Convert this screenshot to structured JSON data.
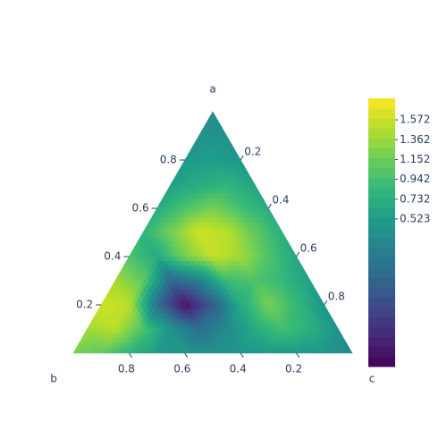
{
  "chart_data": {
    "type": "ternary-contour",
    "axis_titles": {
      "a": "a",
      "b": "b",
      "c": "c"
    },
    "a": [
      1,
      0.9,
      0.9,
      0.8,
      0.8,
      0.8,
      0.7,
      0.7,
      0.7,
      0.7,
      0.6,
      0.6,
      0.6,
      0.6,
      0.6,
      0.5,
      0.5,
      0.5,
      0.5,
      0.5,
      0.5,
      0.4,
      0.4,
      0.4,
      0.4,
      0.4,
      0.4,
      0.4,
      0.3,
      0.3,
      0.3,
      0.3,
      0.3,
      0.3,
      0.3,
      0.3,
      0.2,
      0.2,
      0.2,
      0.2,
      0.2,
      0.2,
      0.2,
      0.2,
      0.2,
      0.1,
      0.1,
      0.1,
      0.1,
      0.1,
      0.1,
      0.1,
      0.1,
      0.1,
      0.1,
      0,
      0,
      0,
      0,
      0,
      0,
      0,
      0,
      0,
      0,
      0
    ],
    "b": [
      0,
      0,
      0.1,
      0,
      0.1,
      0.2,
      0,
      0.1,
      0.2,
      0.3,
      0,
      0.1,
      0.2,
      0.3,
      0.4,
      0,
      0.1,
      0.2,
      0.3,
      0.4,
      0.5,
      0,
      0.1,
      0.2,
      0.3,
      0.4,
      0.5,
      0.6,
      0,
      0.1,
      0.2,
      0.3,
      0.4,
      0.5,
      0.6,
      0.7,
      0,
      0.1,
      0.2,
      0.3,
      0.4,
      0.5,
      0.6,
      0.7,
      0.8,
      0,
      0.1,
      0.2,
      0.3,
      0.4,
      0.5,
      0.6,
      0.7,
      0.8,
      0.9,
      0,
      0.1,
      0.2,
      0.3,
      0.4,
      0.5,
      0.6,
      0.7,
      0.8,
      0.9,
      1
    ],
    "c": [
      0,
      0.1,
      0,
      0.2,
      0.1,
      0,
      0.3,
      0.2,
      0.1,
      0,
      0.4,
      0.3,
      0.2,
      0.1,
      0,
      0.5,
      0.4,
      0.3,
      0.2,
      0.1,
      0,
      0.6,
      0.5,
      0.4,
      0.3,
      0.2,
      0.1,
      0,
      0.7,
      0.6,
      0.5,
      0.4,
      0.3,
      0.2,
      0.1,
      0,
      0.8,
      0.7,
      0.6,
      0.5,
      0.4,
      0.3,
      0.2,
      0.1,
      0,
      0.9,
      0.8,
      0.7,
      0.6,
      0.5,
      0.4,
      0.3,
      0.2,
      0.1,
      0,
      1,
      0.9,
      0.8,
      0.7,
      0.6,
      0.5,
      0.4,
      0.3,
      0.2,
      0.1,
      0
    ],
    "z": [
      0.35,
      0.4,
      0.4,
      0.45,
      0.55,
      0.5,
      0.6,
      0.8,
      0.7,
      0.55,
      0.7,
      0.95,
      1.2,
      1.0,
      0.7,
      0.75,
      1.1,
      1.5,
      1.6,
      1.2,
      0.8,
      0.65,
      1.0,
      1.4,
      1.55,
      1.2,
      0.7,
      1.0,
      0.55,
      0.85,
      1.0,
      0.9,
      0.2,
      -0.1,
      1.1,
      1.4,
      0.45,
      0.85,
      1.2,
      0.7,
      -0.2,
      -0.9,
      0.0,
      1.5,
      1.6,
      0.4,
      0.75,
      0.95,
      0.7,
      0.3,
      0.0,
      0.4,
      1.0,
      1.5,
      1.4,
      0.3,
      0.45,
      0.5,
      0.5,
      0.45,
      0.4,
      0.45,
      0.5,
      0.8,
      1.1,
      1.2
    ],
    "aticks": [
      0.2,
      0.4,
      0.6,
      0.8
    ],
    "bticks": [
      0.2,
      0.4,
      0.6,
      0.8
    ],
    "cticks": [
      0.2,
      0.4,
      0.6,
      0.8
    ],
    "colorscale": [
      "#440154",
      "#482878",
      "#3e4989",
      "#31688e",
      "#26828e",
      "#1f9e89",
      "#35b779",
      "#6ece58",
      "#b5de2b",
      "#fde725"
    ],
    "zlim": [
      -1.04,
      1.8
    ],
    "colorbar_ticks": [
      0.523,
      0.732,
      0.942,
      1.152,
      1.362,
      1.572
    ]
  }
}
